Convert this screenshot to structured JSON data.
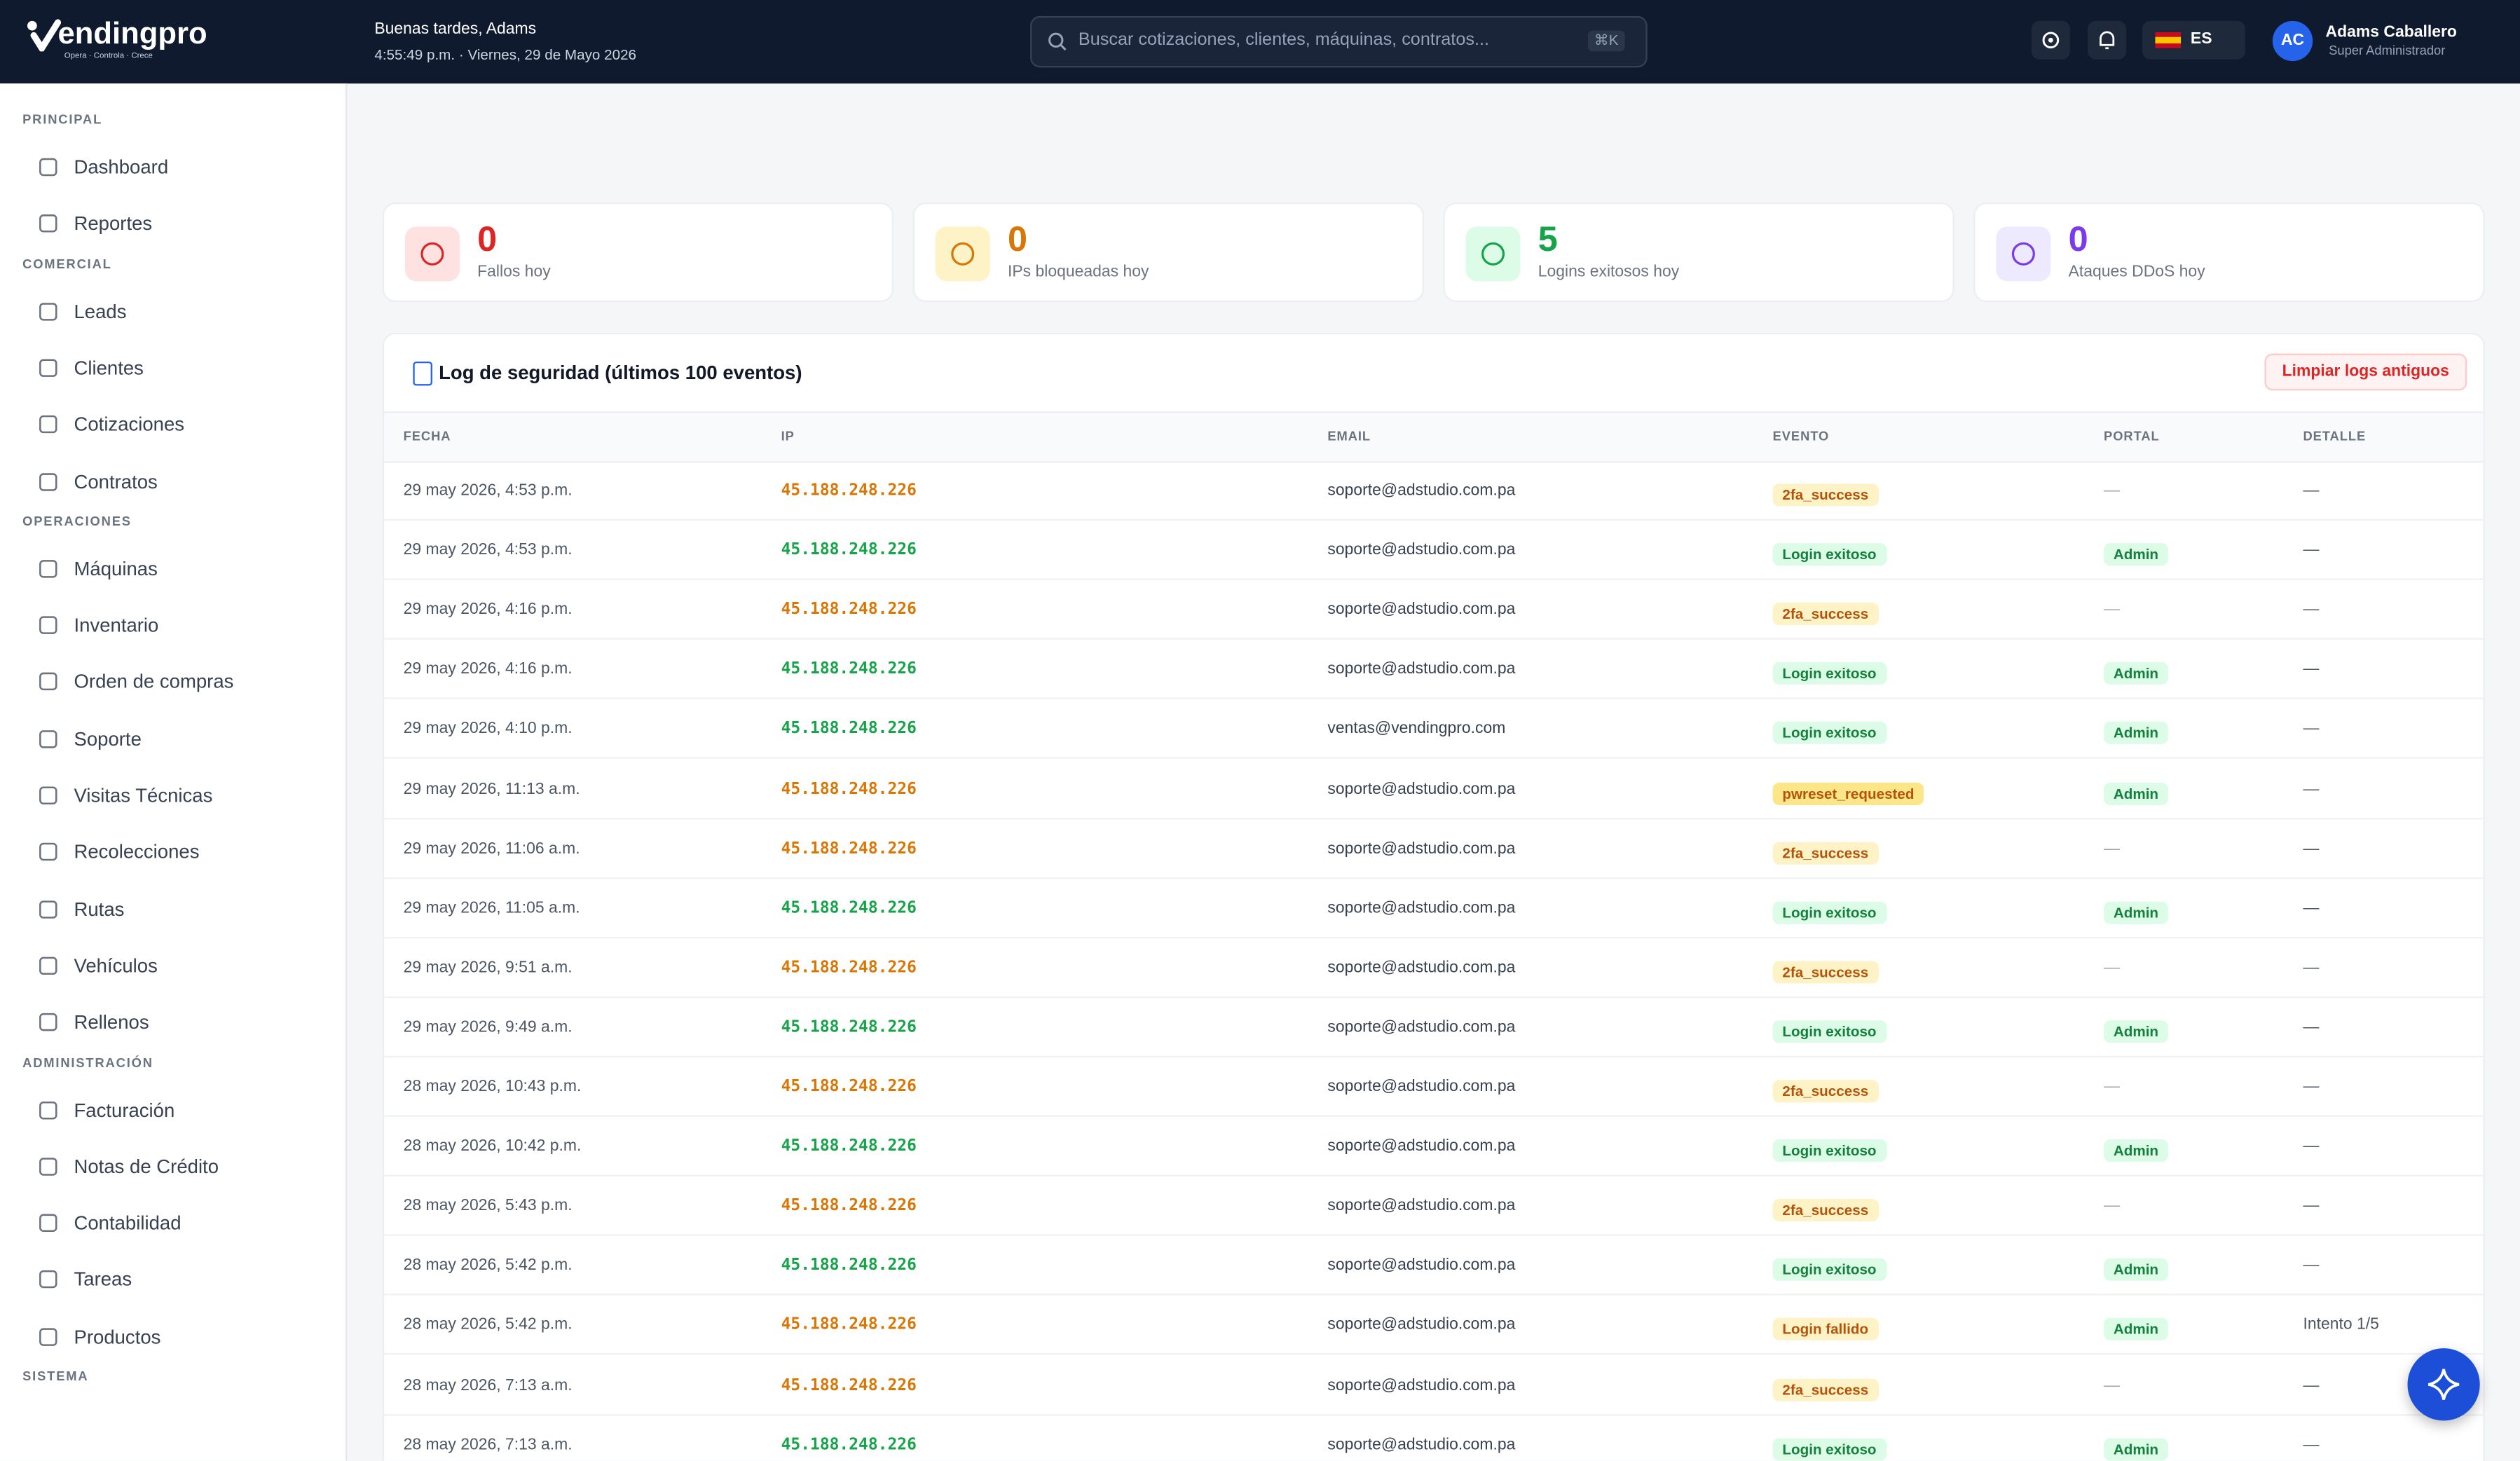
{
  "header": {
    "brand": "endingpro",
    "tagline": "Opera · Controla · Crece",
    "greeting": "Buenas tardes, Adams",
    "datetime": "4:55:49 p.m. · Viernes, 29 de Mayo 2026",
    "search": "Buscar cotizaciones, clientes, máquinas, contratos...",
    "shortcut": "⌘K",
    "lang": "ES",
    "avatar": "AC",
    "user": "Adams Caballero",
    "role": "Super Administrador"
  },
  "sidebar": [
    {
      "title": "PRINCIPAL",
      "items": [
        "Dashboard",
        "Reportes"
      ]
    },
    {
      "title": "COMERCIAL",
      "items": [
        "Leads",
        "Clientes",
        "Cotizaciones",
        "Contratos"
      ]
    },
    {
      "title": "OPERACIONES",
      "items": [
        "Máquinas",
        "Inventario",
        "Orden de compras",
        "Soporte",
        "Visitas Técnicas",
        "Recolecciones",
        "Rutas",
        "Vehículos",
        "Rellenos"
      ]
    },
    {
      "title": "ADMINISTRACIÓN",
      "items": [
        "Facturación",
        "Notas de Crédito",
        "Contabilidad",
        "Tareas",
        "Productos"
      ]
    },
    {
      "title": "SISTEMA",
      "items": []
    }
  ],
  "stats": [
    {
      "value": "0",
      "label": "Fallos hoy"
    },
    {
      "value": "0",
      "label": "IPs bloqueadas hoy"
    },
    {
      "value": "5",
      "label": "Logins exitosos hoy"
    },
    {
      "value": "0",
      "label": "Ataques DDoS hoy"
    }
  ],
  "log": {
    "title": "Log de seguridad (últimos 100 eventos)",
    "button": "Limpiar logs antiguos",
    "columns": [
      "FECHA",
      "IP",
      "EMAIL",
      "EVENTO",
      "PORTAL",
      "DETALLE"
    ],
    "rows": [
      [
        "29 may 2026, 4:53 p.m.",
        "45.188.248.226",
        "soporte@adstudio.com.pa",
        "2fa_success",
        "—",
        "—"
      ],
      [
        "29 may 2026, 4:53 p.m.",
        "45.188.248.226",
        "soporte@adstudio.com.pa",
        "Login exitoso",
        "Admin",
        "—"
      ],
      [
        "29 may 2026, 4:16 p.m.",
        "45.188.248.226",
        "soporte@adstudio.com.pa",
        "2fa_success",
        "—",
        "—"
      ],
      [
        "29 may 2026, 4:16 p.m.",
        "45.188.248.226",
        "soporte@adstudio.com.pa",
        "Login exitoso",
        "Admin",
        "—"
      ],
      [
        "29 may 2026, 4:10 p.m.",
        "45.188.248.226",
        "ventas@vendingpro.com",
        "Login exitoso",
        "Admin",
        "—"
      ],
      [
        "29 may 2026, 11:13 a.m.",
        "45.188.248.226",
        "soporte@adstudio.com.pa",
        "pwreset_requested",
        "Admin",
        "—"
      ],
      [
        "29 may 2026, 11:06 a.m.",
        "45.188.248.226",
        "soporte@adstudio.com.pa",
        "2fa_success",
        "—",
        "—"
      ],
      [
        "29 may 2026, 11:05 a.m.",
        "45.188.248.226",
        "soporte@adstudio.com.pa",
        "Login exitoso",
        "Admin",
        "—"
      ],
      [
        "29 may 2026, 9:51 a.m.",
        "45.188.248.226",
        "soporte@adstudio.com.pa",
        "2fa_success",
        "—",
        "—"
      ],
      [
        "29 may 2026, 9:49 a.m.",
        "45.188.248.226",
        "soporte@adstudio.com.pa",
        "Login exitoso",
        "Admin",
        "—"
      ],
      [
        "28 may 2026, 10:43 p.m.",
        "45.188.248.226",
        "soporte@adstudio.com.pa",
        "2fa_success",
        "—",
        "—"
      ],
      [
        "28 may 2026, 10:42 p.m.",
        "45.188.248.226",
        "soporte@adstudio.com.pa",
        "Login exitoso",
        "Admin",
        "—"
      ],
      [
        "28 may 2026, 5:43 p.m.",
        "45.188.248.226",
        "soporte@adstudio.com.pa",
        "2fa_success",
        "—",
        "—"
      ],
      [
        "28 may 2026, 5:42 p.m.",
        "45.188.248.226",
        "soporte@adstudio.com.pa",
        "Login exitoso",
        "Admin",
        "—"
      ],
      [
        "28 may 2026, 5:42 p.m.",
        "45.188.248.226",
        "soporte@adstudio.com.pa",
        "Login fallido",
        "Admin",
        "Intento 1/5"
      ],
      [
        "28 may 2026, 7:13 a.m.",
        "45.188.248.226",
        "soporte@adstudio.com.pa",
        "2fa_success",
        "—",
        "—"
      ],
      [
        "28 may 2026, 7:13 a.m.",
        "45.188.248.226",
        "soporte@adstudio.com.pa",
        "Login exitoso",
        "Admin",
        "—"
      ]
    ]
  }
}
